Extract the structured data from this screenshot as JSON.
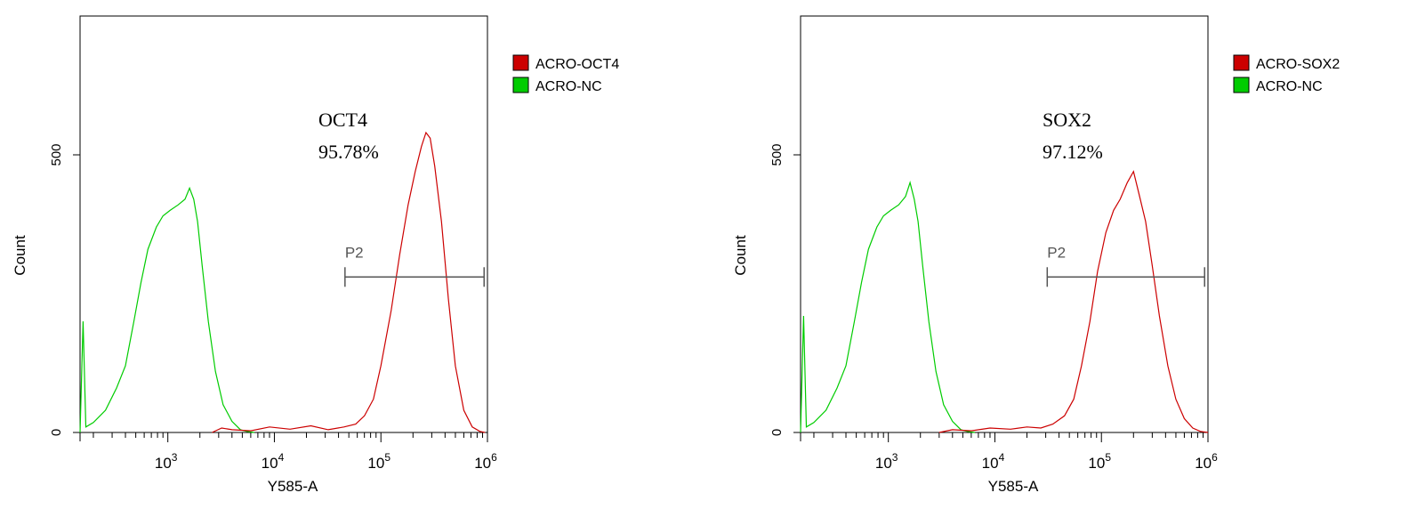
{
  "chart_data": [
    {
      "type": "line",
      "subtype": "flow-cytometry-histogram",
      "xlabel": "Y585-A",
      "ylabel": "Count",
      "x_scale": "log",
      "xlim": [
        150,
        1000000
      ],
      "ylim": [
        0,
        750
      ],
      "y_ticks": [
        {
          "value": 0,
          "label": "0"
        },
        {
          "value": 500,
          "label": "500"
        }
      ],
      "x_ticks": [
        {
          "value": 1000,
          "base": "10",
          "exp": "3"
        },
        {
          "value": 10000,
          "base": "10",
          "exp": "4"
        },
        {
          "value": 100000,
          "base": "10",
          "exp": "5"
        },
        {
          "value": 1000000,
          "base": "10",
          "exp": "6"
        }
      ],
      "annotation": {
        "name": "OCT4",
        "percent": "95.78%"
      },
      "gate": {
        "label": "P2",
        "x_start": 46000,
        "x_end": 930000,
        "y": 280
      },
      "legend_position": "right",
      "series": [
        {
          "name": "ACRO-OCT4",
          "color": "#cc0000",
          "points": [
            [
              2600,
              0
            ],
            [
              3200,
              8
            ],
            [
              4000,
              5
            ],
            [
              6000,
              3
            ],
            [
              9000,
              10
            ],
            [
              14000,
              6
            ],
            [
              22000,
              12
            ],
            [
              32000,
              5
            ],
            [
              45000,
              10
            ],
            [
              58000,
              15
            ],
            [
              70000,
              30
            ],
            [
              85000,
              60
            ],
            [
              100000,
              120
            ],
            [
              125000,
              220
            ],
            [
              150000,
              320
            ],
            [
              180000,
              410
            ],
            [
              210000,
              470
            ],
            [
              240000,
              515
            ],
            [
              265000,
              540
            ],
            [
              290000,
              530
            ],
            [
              320000,
              480
            ],
            [
              370000,
              380
            ],
            [
              430000,
              240
            ],
            [
              500000,
              120
            ],
            [
              600000,
              40
            ],
            [
              720000,
              10
            ],
            [
              850000,
              2
            ],
            [
              950000,
              0
            ]
          ]
        },
        {
          "name": "ACRO-NC",
          "color": "#00cc00",
          "points": [
            [
              150,
              0
            ],
            [
              160,
              200
            ],
            [
              170,
              10
            ],
            [
              200,
              18
            ],
            [
              260,
              40
            ],
            [
              330,
              80
            ],
            [
              400,
              120
            ],
            [
              480,
              200
            ],
            [
              560,
              270
            ],
            [
              650,
              330
            ],
            [
              780,
              370
            ],
            [
              900,
              390
            ],
            [
              1050,
              400
            ],
            [
              1250,
              410
            ],
            [
              1450,
              420
            ],
            [
              1600,
              440
            ],
            [
              1750,
              420
            ],
            [
              1900,
              380
            ],
            [
              2100,
              300
            ],
            [
              2400,
              200
            ],
            [
              2800,
              110
            ],
            [
              3300,
              50
            ],
            [
              4000,
              20
            ],
            [
              4800,
              5
            ],
            [
              5500,
              2
            ],
            [
              6500,
              0
            ]
          ]
        }
      ]
    },
    {
      "type": "line",
      "subtype": "flow-cytometry-histogram",
      "xlabel": "Y585-A",
      "ylabel": "Count",
      "x_scale": "log",
      "xlim": [
        150,
        1000000
      ],
      "ylim": [
        0,
        750
      ],
      "y_ticks": [
        {
          "value": 0,
          "label": "0"
        },
        {
          "value": 500,
          "label": "500"
        }
      ],
      "x_ticks": [
        {
          "value": 1000,
          "base": "10",
          "exp": "3"
        },
        {
          "value": 10000,
          "base": "10",
          "exp": "4"
        },
        {
          "value": 100000,
          "base": "10",
          "exp": "5"
        },
        {
          "value": 1000000,
          "base": "10",
          "exp": "6"
        }
      ],
      "annotation": {
        "name": "SOX2",
        "percent": "97.12%"
      },
      "gate": {
        "label": "P2",
        "x_start": 31000,
        "x_end": 930000,
        "y": 280
      },
      "legend_position": "right",
      "series": [
        {
          "name": "ACRO-SOX2",
          "color": "#cc0000",
          "points": [
            [
              3000,
              0
            ],
            [
              4000,
              5
            ],
            [
              6000,
              3
            ],
            [
              9000,
              8
            ],
            [
              14000,
              6
            ],
            [
              20000,
              10
            ],
            [
              27000,
              8
            ],
            [
              35000,
              15
            ],
            [
              45000,
              30
            ],
            [
              55000,
              60
            ],
            [
              65000,
              120
            ],
            [
              78000,
              200
            ],
            [
              92000,
              290
            ],
            [
              110000,
              360
            ],
            [
              130000,
              400
            ],
            [
              150000,
              420
            ],
            [
              175000,
              450
            ],
            [
              200000,
              470
            ],
            [
              225000,
              430
            ],
            [
              260000,
              380
            ],
            [
              300000,
              300
            ],
            [
              350000,
              210
            ],
            [
              420000,
              120
            ],
            [
              500000,
              60
            ],
            [
              600000,
              25
            ],
            [
              720000,
              8
            ],
            [
              850000,
              2
            ],
            [
              1000000,
              0
            ]
          ]
        },
        {
          "name": "ACRO-NC",
          "color": "#00cc00",
          "points": [
            [
              150,
              0
            ],
            [
              160,
              210
            ],
            [
              170,
              10
            ],
            [
              200,
              18
            ],
            [
              260,
              40
            ],
            [
              330,
              80
            ],
            [
              400,
              120
            ],
            [
              480,
              200
            ],
            [
              560,
              270
            ],
            [
              650,
              330
            ],
            [
              780,
              370
            ],
            [
              900,
              390
            ],
            [
              1050,
              400
            ],
            [
              1250,
              410
            ],
            [
              1450,
              425
            ],
            [
              1600,
              450
            ],
            [
              1750,
              420
            ],
            [
              1900,
              380
            ],
            [
              2100,
              300
            ],
            [
              2400,
              200
            ],
            [
              2800,
              110
            ],
            [
              3300,
              50
            ],
            [
              4000,
              20
            ],
            [
              4800,
              5
            ],
            [
              5500,
              2
            ],
            [
              6500,
              0
            ]
          ]
        }
      ]
    }
  ]
}
